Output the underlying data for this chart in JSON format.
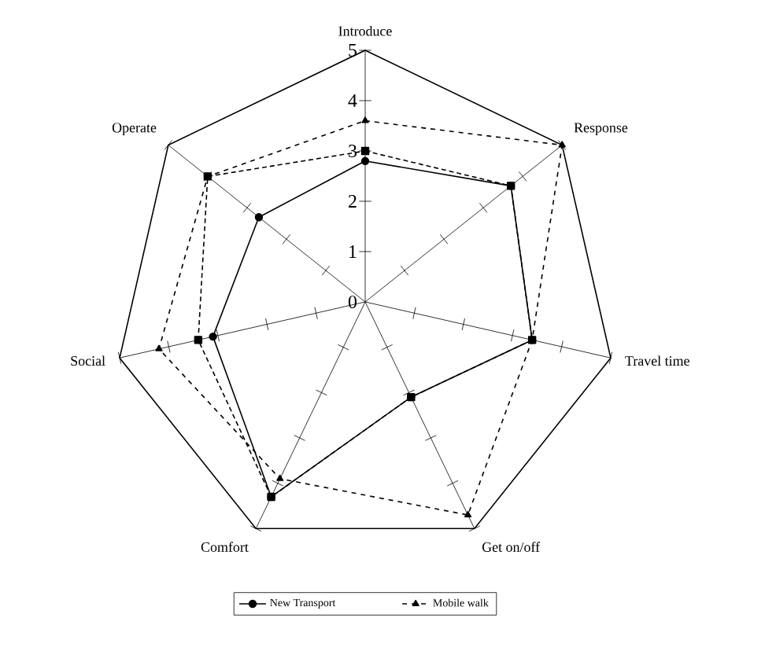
{
  "chart_data": {
    "type": "radar",
    "categories": [
      "Introduce",
      "Response",
      "Travel time",
      "Get on/off",
      "Comfort",
      "Social",
      "Operate"
    ],
    "ylim": [
      0,
      5
    ],
    "yticks": [
      0,
      1,
      2,
      3,
      4,
      5
    ],
    "legend": "bottom",
    "series": [
      {
        "name": "New Transport",
        "color": "#000000",
        "marker": "circle",
        "line_style": "solid",
        "values": [
          2.8,
          3.7,
          3.4,
          2.1,
          4.3,
          3.1,
          2.7
        ]
      },
      {
        "color": "#000000",
        "marker": "square",
        "line_style": "dotted",
        "values": [
          3.0,
          3.7,
          3.4,
          2.1,
          4.3,
          3.4,
          4.0
        ]
      },
      {
        "name": "Mobile walk",
        "color": "#000000",
        "marker": "triangle",
        "line_style": "dashed",
        "values": [
          3.6,
          5.0,
          3.4,
          4.7,
          3.9,
          4.2,
          4.0
        ]
      }
    ]
  }
}
